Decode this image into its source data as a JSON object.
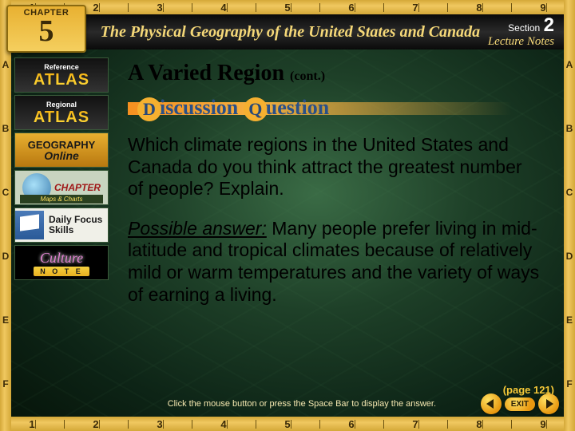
{
  "ruler": {
    "top_numbers": [
      "1",
      "2",
      "3",
      "4",
      "5",
      "6",
      "7",
      "8",
      "9"
    ],
    "bottom_numbers": [
      "1",
      "2",
      "3",
      "4",
      "5",
      "6",
      "7",
      "8",
      "9"
    ],
    "left_letters": [
      "A",
      "B",
      "C",
      "D",
      "E",
      "F"
    ],
    "right_letters": [
      "A",
      "B",
      "C",
      "D",
      "E",
      "F"
    ],
    "color": "#e8b838"
  },
  "header": {
    "chapter_label": "CHAPTER",
    "chapter_number": "5",
    "title": "The Physical Geography of the United States and Canada",
    "section_label": "Section",
    "section_number": "2",
    "lecture_notes": "Lecture Notes",
    "title_color": "#f5d878",
    "bg_color": "#111111"
  },
  "sidebar": {
    "items": [
      {
        "name": "reference-atlas",
        "top": "Reference",
        "main": "ATLAS"
      },
      {
        "name": "regional-atlas",
        "top": "Regional",
        "main": "ATLAS"
      },
      {
        "name": "geography-online",
        "line1": "GEOGRAPHY",
        "line2": "Online"
      },
      {
        "name": "chapter-maps",
        "label": "CHAPTER",
        "sub": "Maps & Charts"
      },
      {
        "name": "daily-focus",
        "label": "Daily Focus Skills"
      },
      {
        "name": "culture-note",
        "line1": "Culture",
        "line2": "N O T E"
      }
    ]
  },
  "content": {
    "title": "A Varied Region",
    "title_suffix": "(cont.)",
    "banner_word1_initial": "D",
    "banner_word1_rest": "iscussion",
    "banner_word2_initial": "Q",
    "banner_word2_rest": "uestion",
    "question": "Which climate regions in the United States and Canada do you think attract the greatest number of people? Explain.",
    "answer_lead": "Possible answer:",
    "answer_body": " Many people prefer living in mid-latitude and tropical climates because of relatively mild or warm temperatures and the variety of ways of earning a living.",
    "page_ref": "(page 121)",
    "title_font": "Times New Roman",
    "body_fontsize": 23,
    "text_color": "#000000"
  },
  "footer": {
    "hint": "Click the mouse button or press the Space Bar to display the answer.",
    "exit_label": "EXIT",
    "button_color": "#e89810"
  },
  "colors": {
    "page_bg_inner": "#3a6b45",
    "page_bg_outer": "#051208",
    "accent_gold": "#f5c838",
    "banner_orange": "#f59020",
    "dq_text": "#2a5088"
  }
}
